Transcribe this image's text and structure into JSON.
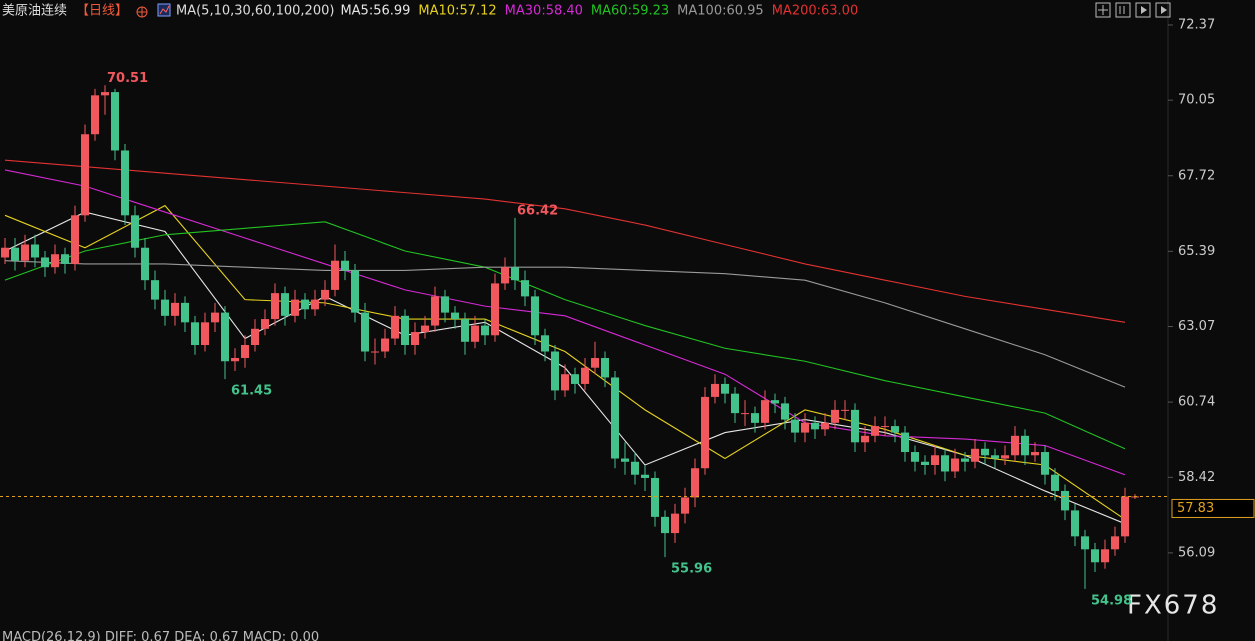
{
  "chart_data": {
    "type": "candlestick",
    "title": "美原油连续",
    "period": "【日线】",
    "ma_label": "MA(5,10,30,60,100,200)",
    "up_color": "#f0585e",
    "down_color": "#44c28c",
    "open": [
      65.2,
      65.5,
      65.1,
      65.6,
      65.2,
      64.9,
      65.3,
      65.0,
      66.5,
      69.0,
      70.2,
      70.3,
      68.5,
      66.5,
      65.5,
      64.5,
      63.9,
      63.4,
      63.8,
      63.2,
      62.5,
      63.2,
      63.5,
      62.0,
      62.1,
      62.5,
      63.0,
      63.3,
      64.1,
      63.4,
      63.9,
      63.6,
      63.9,
      64.2,
      65.1,
      64.8,
      63.5,
      62.3,
      62.3,
      62.7,
      63.4,
      62.5,
      62.9,
      63.1,
      64.0,
      63.5,
      63.3,
      62.6,
      63.1,
      62.8,
      64.4,
      64.9,
      64.5,
      64.0,
      62.8,
      62.3,
      61.1,
      61.6,
      61.3,
      61.8,
      62.1,
      61.5,
      59.0,
      58.9,
      58.5,
      58.4,
      57.2,
      56.7,
      57.3,
      57.8,
      58.7,
      60.9,
      61.3,
      61.0,
      60.4,
      60.4,
      60.1,
      60.8,
      60.7,
      60.2,
      59.8,
      60.1,
      59.9,
      60.1,
      60.5,
      60.5,
      59.5,
      59.7,
      60.0,
      60.0,
      59.8,
      59.2,
      58.9,
      58.8,
      59.1,
      58.6,
      59.0,
      58.9,
      59.3,
      59.1,
      59.0,
      59.1,
      59.7,
      59.1,
      59.2,
      58.5,
      58.0,
      57.4,
      56.6,
      56.2,
      55.8,
      56.2,
      56.6,
      57.83
    ],
    "high": [
      65.8,
      65.8,
      65.9,
      65.9,
      65.4,
      65.6,
      65.5,
      66.8,
      69.3,
      70.4,
      70.51,
      70.4,
      68.7,
      66.8,
      65.8,
      64.8,
      64.2,
      64.1,
      64.0,
      63.4,
      63.5,
      63.8,
      63.7,
      62.4,
      62.8,
      63.3,
      63.6,
      64.4,
      64.3,
      64.2,
      64.1,
      64.2,
      64.5,
      65.6,
      65.4,
      65.0,
      63.8,
      62.7,
      63.0,
      63.7,
      63.6,
      63.2,
      63.4,
      64.3,
      64.2,
      63.7,
      63.5,
      63.4,
      63.3,
      64.7,
      65.2,
      66.42,
      64.8,
      64.2,
      63.0,
      62.5,
      61.9,
      61.8,
      62.1,
      62.6,
      62.3,
      61.7,
      59.5,
      59.2,
      58.8,
      58.6,
      57.4,
      57.6,
      58.1,
      59.0,
      61.2,
      61.6,
      61.5,
      61.2,
      60.8,
      60.6,
      61.1,
      61.0,
      60.9,
      60.4,
      60.4,
      60.3,
      60.4,
      60.8,
      60.8,
      60.7,
      60.0,
      60.3,
      60.3,
      60.2,
      60.0,
      59.4,
      59.1,
      59.4,
      59.3,
      59.3,
      59.2,
      59.6,
      59.5,
      59.3,
      59.4,
      60.0,
      59.9,
      59.5,
      59.4,
      58.7,
      58.2,
      57.6,
      56.8,
      56.4,
      56.5,
      56.9,
      58.1,
      57.9
    ],
    "low": [
      65.0,
      64.8,
      64.9,
      64.9,
      64.6,
      64.7,
      64.7,
      64.8,
      66.3,
      68.8,
      69.6,
      68.2,
      66.2,
      65.2,
      64.2,
      63.6,
      63.1,
      63.1,
      62.9,
      62.2,
      62.3,
      62.9,
      61.45,
      61.7,
      61.8,
      62.3,
      62.8,
      63.1,
      63.1,
      63.2,
      63.3,
      63.4,
      63.7,
      64.0,
      64.5,
      63.2,
      62.0,
      61.9,
      62.1,
      62.5,
      62.2,
      62.2,
      62.7,
      62.9,
      63.2,
      63.0,
      62.2,
      62.4,
      62.5,
      62.6,
      64.2,
      64.2,
      63.7,
      62.5,
      62.0,
      60.8,
      60.9,
      61.0,
      61.1,
      61.6,
      61.2,
      58.7,
      58.5,
      58.2,
      58.0,
      56.9,
      55.96,
      56.4,
      57.0,
      57.5,
      58.5,
      60.7,
      60.7,
      60.1,
      60.0,
      59.8,
      59.9,
      60.4,
      59.9,
      59.5,
      59.5,
      59.6,
      59.7,
      59.9,
      60.2,
      59.2,
      59.2,
      59.5,
      59.7,
      59.5,
      58.9,
      58.6,
      58.5,
      58.5,
      58.3,
      58.4,
      58.6,
      58.7,
      58.8,
      58.7,
      58.8,
      58.9,
      58.8,
      58.9,
      58.2,
      57.7,
      57.1,
      56.3,
      54.98,
      55.5,
      55.6,
      56.0,
      56.4,
      57.75
    ],
    "close": [
      65.5,
      65.1,
      65.6,
      65.2,
      64.9,
      65.3,
      65.0,
      66.5,
      69.0,
      70.2,
      70.3,
      68.5,
      66.5,
      65.5,
      64.5,
      63.9,
      63.4,
      63.8,
      63.2,
      62.5,
      63.2,
      63.5,
      62.0,
      62.1,
      62.5,
      63.0,
      63.3,
      64.1,
      63.4,
      63.9,
      63.6,
      63.9,
      64.2,
      65.1,
      64.8,
      63.5,
      62.3,
      62.3,
      62.7,
      63.4,
      62.5,
      62.9,
      63.1,
      64.0,
      63.5,
      63.3,
      62.6,
      63.1,
      62.8,
      64.4,
      64.9,
      64.5,
      64.0,
      62.8,
      62.3,
      61.1,
      61.6,
      61.3,
      61.8,
      62.1,
      61.5,
      59.0,
      58.9,
      58.5,
      58.4,
      57.2,
      56.7,
      57.3,
      57.8,
      58.7,
      60.9,
      61.3,
      61.0,
      60.4,
      60.4,
      60.1,
      60.8,
      60.7,
      60.2,
      59.8,
      60.1,
      59.9,
      60.1,
      60.5,
      60.5,
      59.5,
      59.7,
      60.0,
      60.0,
      59.8,
      59.2,
      58.9,
      58.8,
      59.1,
      58.6,
      59.0,
      58.9,
      59.3,
      59.1,
      59.0,
      59.1,
      59.7,
      59.1,
      59.2,
      58.5,
      58.0,
      57.4,
      56.6,
      56.2,
      55.8,
      56.2,
      56.6,
      57.83,
      57.83
    ],
    "ma_x": [
      0,
      8,
      16,
      24,
      32,
      40,
      48,
      56,
      64,
      72,
      80,
      88,
      96,
      104,
      112
    ],
    "series": [
      {
        "name": "MA5:56.99",
        "color": "#e6e6e6",
        "values": [
          65.4,
          66.6,
          66.0,
          62.7,
          64.0,
          62.8,
          63.2,
          61.8,
          58.8,
          59.8,
          60.2,
          59.8,
          59.1,
          58.0,
          56.99
        ]
      },
      {
        "name": "MA10:57.12",
        "color": "#e6d21e",
        "values": [
          66.5,
          65.5,
          66.8,
          63.9,
          63.8,
          63.3,
          63.3,
          62.3,
          60.5,
          59.0,
          60.5,
          59.9,
          59.1,
          58.8,
          57.12
        ]
      },
      {
        "name": "MA30:58.40",
        "color": "#d62ad6",
        "values": [
          67.9,
          67.4,
          66.6,
          65.8,
          65.0,
          64.2,
          63.7,
          63.4,
          62.5,
          61.6,
          60.1,
          59.7,
          59.6,
          59.4,
          58.5
        ]
      },
      {
        "name": "MA60:59.23",
        "color": "#22c322",
        "values": [
          64.5,
          65.4,
          65.9,
          66.1,
          66.3,
          65.4,
          64.9,
          63.9,
          63.1,
          62.4,
          62.0,
          61.4,
          60.9,
          60.4,
          59.3
        ]
      },
      {
        "name": "MA100:60.95",
        "color": "#9a9a9a",
        "values": [
          65.1,
          65.0,
          65.0,
          64.9,
          64.8,
          64.8,
          64.9,
          64.9,
          64.8,
          64.7,
          64.5,
          63.8,
          63.0,
          62.2,
          61.2
        ]
      },
      {
        "name": "MA200:63.00",
        "color": "#e23232",
        "values": [
          68.2,
          68.0,
          67.8,
          67.6,
          67.4,
          67.2,
          67.0,
          66.7,
          66.2,
          65.6,
          65.0,
          64.5,
          64.0,
          63.6,
          63.2
        ]
      }
    ],
    "last_price": 57.83,
    "ylim": [
      54.02,
      73.14
    ],
    "yticks": [
      72.37,
      70.05,
      67.72,
      65.39,
      63.07,
      60.74,
      58.42,
      56.09
    ],
    "high_marks": [
      10,
      51
    ],
    "low_marks": [
      22,
      66,
      108
    ],
    "footer": "MACD(26,12,9)  DIFF: 0.67  DEA: 0.67  MACD: 0.00",
    "watermark": "FX678"
  }
}
